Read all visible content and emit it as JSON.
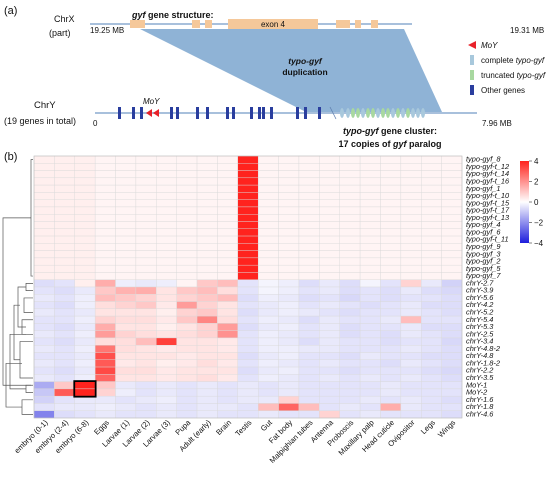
{
  "panel_a": {
    "label": "(a)",
    "chrx_name": "ChrX",
    "chrx_sub": "(part)",
    "chrx_start": "19.25 MB",
    "chrx_end": "19.31 MB",
    "gene_structure_bold": "gyf",
    "gene_structure_rest": " gene structure:",
    "exon_label": "exon 4",
    "duplication_line1": "typo-gyf",
    "duplication_line2": "duplication",
    "chry_name": "ChrY",
    "chry_sub": "(19 genes in total)",
    "chry_start": "0",
    "chry_end": "7.96 MB",
    "moy_label": "MoY",
    "cluster_line1_a": "typo-gyf",
    "cluster_line1_b": " gene cluster:",
    "cluster_line2_a": "17 copies of ",
    "cluster_line2_b": "gyf",
    "cluster_line2_c": " paralog",
    "legend": [
      {
        "text_a": "MoY",
        "text_b": "",
        "color": "#e8222a",
        "shape": "triangle"
      },
      {
        "text_a": "complete ",
        "text_b": "typo-gyf",
        "color": "#a8c8dc",
        "shape": "bar"
      },
      {
        "text_a": "truncated ",
        "text_b": "typo-gyf",
        "color": "#a8d8a0",
        "shape": "bar"
      },
      {
        "text_a": "Other genes",
        "text_b": "",
        "color": "#2a3e9e",
        "shape": "bar"
      }
    ],
    "colors": {
      "backbone": "#a8c0dc",
      "exon": "#f5c89a",
      "duplication": "#8fb3d6",
      "chry": "#e8222a"
    }
  },
  "panel_b": {
    "label": "(b)",
    "colorbar_ticks": [
      "4",
      "2",
      "0",
      "−2",
      "−4"
    ]
  },
  "chart_data": {
    "type": "heatmap",
    "columns": [
      "embryo (0-1)",
      "embryo (2-4)",
      "embryo (6-8)",
      "Eggs",
      "Larvae (1)",
      "Larvae (2)",
      "Larvae (3)",
      "Pupa",
      "Adult (early)",
      "Brain",
      "Testis",
      "Gut",
      "Fat body",
      "Malpighian tubes",
      "Antenna",
      "Proboscis",
      "Maxillary palp",
      "Head cuticle",
      "Ovipositor",
      "Legs",
      "Wings"
    ],
    "rows": [
      "typo-gyf_8",
      "typo-gyf-t_12",
      "typo-gyf-t_14",
      "typo-gyf-t_16",
      "typo-gyf_1",
      "typo-gyf-t_10",
      "typo-gyf-t_15",
      "typo-gyf-t_17",
      "typo-gyf-t_13",
      "typo-gyf_4",
      "typo-gyf_6",
      "typo-gyf-t_11",
      "typo-gyf_9",
      "typo-gyf_3",
      "typo-gyf_2",
      "typo-gyf_5",
      "typo-gyf_7",
      "chrY-2.7",
      "chrY-3.9",
      "chrY-5.6",
      "chrY-4.2",
      "chrY-5.2",
      "chrY-5.4",
      "chrY-5.3",
      "chrY-2.5",
      "chrY-3.4",
      "chrY-4.8-2",
      "chrY-4.8",
      "chrY-1.8-2",
      "chrY-2.2",
      "chrY-3.5",
      "MoY-1",
      "MoY-2",
      "chrY-1.6",
      "chrY-1.8",
      "chrY-4.6"
    ],
    "values": [
      [
        0.3,
        0.3,
        0.3,
        0.2,
        0.2,
        0.2,
        0.2,
        0.2,
        0.2,
        0.2,
        4.5,
        0.2,
        0.2,
        0.2,
        0.2,
        0.2,
        0.2,
        0.2,
        0.2,
        0.2,
        0.2
      ],
      [
        0.3,
        0.3,
        0.3,
        0.2,
        0.2,
        0.2,
        0.2,
        0.2,
        0.2,
        0.2,
        4.5,
        0.2,
        0.2,
        0.2,
        0.2,
        0.2,
        0.2,
        0.2,
        0.2,
        0.2,
        0.2
      ],
      [
        0.3,
        0.3,
        0.3,
        0.2,
        0.2,
        0.2,
        0.2,
        0.2,
        0.2,
        0.2,
        4.5,
        0.2,
        0.2,
        0.2,
        0.2,
        0.2,
        0.2,
        0.2,
        0.2,
        0.2,
        0.2
      ],
      [
        0.3,
        0.3,
        0.3,
        0.2,
        0.2,
        0.2,
        0.2,
        0.2,
        0.2,
        0.2,
        4.5,
        0.2,
        0.2,
        0.2,
        0.2,
        0.2,
        0.2,
        0.2,
        0.2,
        0.2,
        0.2
      ],
      [
        0.3,
        0.3,
        0.3,
        0.2,
        0.2,
        0.2,
        0.2,
        0.2,
        0.2,
        0.2,
        4.5,
        0.2,
        0.2,
        0.2,
        0.2,
        0.2,
        0.2,
        0.2,
        0.2,
        0.2,
        0.2
      ],
      [
        0.3,
        0.3,
        0.3,
        0.2,
        0.2,
        0.2,
        0.2,
        0.2,
        0.2,
        0.2,
        4.5,
        0.2,
        0.2,
        0.2,
        0.2,
        0.2,
        0.2,
        0.2,
        0.2,
        0.2,
        0.2
      ],
      [
        0.3,
        0.3,
        0.3,
        0.2,
        0.2,
        0.2,
        0.2,
        0.2,
        0.2,
        0.2,
        4.5,
        0.2,
        0.2,
        0.2,
        0.2,
        0.2,
        0.2,
        0.2,
        0.2,
        0.2,
        0.2
      ],
      [
        0.3,
        0.3,
        0.3,
        0.2,
        0.2,
        0.2,
        0.2,
        0.2,
        0.2,
        0.2,
        4.5,
        0.2,
        0.2,
        0.2,
        0.2,
        0.2,
        0.2,
        0.2,
        0.2,
        0.2,
        0.2
      ],
      [
        0.3,
        0.3,
        0.3,
        0.2,
        0.2,
        0.2,
        0.2,
        0.2,
        0.2,
        0.2,
        4.5,
        0.2,
        0.2,
        0.2,
        0.2,
        0.2,
        0.2,
        0.2,
        0.2,
        0.2,
        0.2
      ],
      [
        0.3,
        0.3,
        0.3,
        0.2,
        0.2,
        0.2,
        0.2,
        0.2,
        0.2,
        0.2,
        4.5,
        0.2,
        0.2,
        0.2,
        0.2,
        0.2,
        0.2,
        0.2,
        0.2,
        0.2,
        0.2
      ],
      [
        0.3,
        0.3,
        0.3,
        0.2,
        0.2,
        0.2,
        0.2,
        0.2,
        0.2,
        0.2,
        4.5,
        0.2,
        0.2,
        0.2,
        0.2,
        0.2,
        0.2,
        0.2,
        0.2,
        0.2,
        0.2
      ],
      [
        0.3,
        0.3,
        0.3,
        0.2,
        0.2,
        0.2,
        0.2,
        0.2,
        0.2,
        0.2,
        4.5,
        0.2,
        0.2,
        0.2,
        0.2,
        0.2,
        0.2,
        0.2,
        0.2,
        0.2,
        0.2
      ],
      [
        0.3,
        0.3,
        0.3,
        0.2,
        0.2,
        0.2,
        0.2,
        0.2,
        0.2,
        0.2,
        4.5,
        0.2,
        0.2,
        0.2,
        0.2,
        0.2,
        0.2,
        0.2,
        0.2,
        0.2,
        0.2
      ],
      [
        0.3,
        0.3,
        0.3,
        0.2,
        0.2,
        0.2,
        0.2,
        0.2,
        0.2,
        0.2,
        4.5,
        0.2,
        0.2,
        0.2,
        0.2,
        0.2,
        0.2,
        0.2,
        0.2,
        0.2,
        0.2
      ],
      [
        0.3,
        0.3,
        0.3,
        0.2,
        0.2,
        0.2,
        0.2,
        0.2,
        0.2,
        0.2,
        4.5,
        0.2,
        0.2,
        0.2,
        0.2,
        0.2,
        0.2,
        0.2,
        0.2,
        0.2,
        0.2
      ],
      [
        0.3,
        0.3,
        0.3,
        0.2,
        0.2,
        0.2,
        0.2,
        0.2,
        0.2,
        0.2,
        4.5,
        0.2,
        0.2,
        0.2,
        0.2,
        0.2,
        0.2,
        0.2,
        0.2,
        0.2,
        0.2
      ],
      [
        0.3,
        0.3,
        0.3,
        0.2,
        0.2,
        0.2,
        0.2,
        0.2,
        0.2,
        0.2,
        4.5,
        0.2,
        0.2,
        0.2,
        0.2,
        0.2,
        0.2,
        0.2,
        0.2,
        0.2,
        0.2
      ],
      [
        -0.6,
        -0.5,
        0.3,
        1.5,
        -0.3,
        -0.4,
        -0.3,
        0.2,
        1.0,
        1.2,
        -0.5,
        -0.2,
        -0.3,
        -0.6,
        -0.4,
        -0.6,
        -0.2,
        -0.5,
        0.8,
        -0.4,
        -0.8
      ],
      [
        -0.5,
        -0.6,
        -0.4,
        1.0,
        1.4,
        1.5,
        0.5,
        1.0,
        1.2,
        0.6,
        -0.5,
        -0.2,
        -0.3,
        -0.5,
        -0.4,
        -0.6,
        -0.5,
        -0.6,
        -0.4,
        -0.6,
        -0.7
      ],
      [
        -0.4,
        -0.5,
        -0.3,
        1.2,
        1.0,
        0.8,
        0.5,
        0.8,
        1.0,
        1.2,
        -0.6,
        -0.3,
        -0.4,
        -0.6,
        -0.5,
        -0.7,
        -0.5,
        -0.6,
        -0.5,
        -0.5,
        -0.6
      ],
      [
        -0.5,
        -0.6,
        -0.3,
        0.6,
        0.8,
        1.0,
        0.4,
        1.8,
        0.8,
        0.5,
        -0.5,
        -0.4,
        -0.3,
        -0.5,
        -0.4,
        -0.5,
        -0.6,
        -0.5,
        -0.4,
        -0.6,
        -0.6
      ],
      [
        -0.4,
        -0.5,
        -0.4,
        0.5,
        0.5,
        0.5,
        0.3,
        0.8,
        1.0,
        0.5,
        -0.6,
        -0.4,
        -0.3,
        -0.4,
        -0.5,
        -0.6,
        -0.5,
        -0.5,
        -0.4,
        -0.5,
        -0.6
      ],
      [
        -0.5,
        -0.5,
        -0.3,
        0.8,
        0.6,
        0.6,
        0.4,
        1.0,
        2.2,
        0.6,
        -0.5,
        -0.3,
        -0.4,
        -0.6,
        -0.4,
        -0.5,
        -0.5,
        -0.4,
        1.2,
        -0.5,
        -0.5
      ],
      [
        -0.5,
        -0.6,
        -0.4,
        1.5,
        0.5,
        0.5,
        0.3,
        0.5,
        0.8,
        1.8,
        -0.6,
        -0.4,
        -0.3,
        -0.5,
        -0.4,
        -0.6,
        -0.5,
        -0.5,
        -0.4,
        -0.6,
        -0.6
      ],
      [
        -0.4,
        -0.5,
        -0.3,
        1.8,
        0.8,
        0.6,
        0.5,
        0.6,
        0.8,
        2.0,
        -0.5,
        -0.3,
        -0.4,
        -0.5,
        -0.4,
        -0.6,
        -0.5,
        -0.6,
        -0.4,
        -0.5,
        -0.6
      ],
      [
        -0.5,
        -0.6,
        -0.4,
        0.6,
        0.6,
        1.2,
        3.5,
        0.5,
        0.5,
        0.4,
        -0.5,
        -0.3,
        -0.4,
        -0.6,
        -0.4,
        -0.5,
        -0.5,
        -0.6,
        -0.5,
        -0.5,
        -0.7
      ],
      [
        -0.4,
        -0.5,
        -0.3,
        2.5,
        0.6,
        0.5,
        0.4,
        0.5,
        0.5,
        0.4,
        -0.5,
        -0.3,
        -0.3,
        -0.4,
        -0.4,
        -0.5,
        -0.5,
        -0.5,
        -0.4,
        -0.5,
        -0.6
      ],
      [
        -0.5,
        -0.5,
        -0.4,
        3.2,
        0.5,
        0.5,
        0.5,
        0.4,
        0.5,
        0.5,
        -0.6,
        -0.4,
        -0.3,
        -0.5,
        -0.5,
        -0.6,
        -0.4,
        -0.5,
        -0.5,
        -0.6,
        -0.6
      ],
      [
        -0.4,
        -0.5,
        -0.3,
        3.0,
        0.4,
        0.5,
        0.3,
        0.4,
        0.6,
        0.4,
        -0.5,
        -0.3,
        -0.4,
        -0.5,
        -0.4,
        -0.5,
        -0.5,
        -0.6,
        -0.4,
        -0.5,
        -0.6
      ],
      [
        -0.5,
        -0.6,
        -0.4,
        3.3,
        0.6,
        0.6,
        0.4,
        0.5,
        0.5,
        0.5,
        -0.6,
        -0.4,
        -0.3,
        -0.5,
        -0.5,
        -0.6,
        -0.5,
        -0.5,
        -0.5,
        -0.6,
        -0.7
      ],
      [
        -0.4,
        -0.5,
        -0.3,
        2.8,
        0.5,
        0.5,
        0.4,
        0.5,
        0.6,
        0.4,
        -0.5,
        -0.3,
        -0.4,
        -0.5,
        -0.4,
        -0.5,
        -0.4,
        -0.5,
        -0.4,
        -0.5,
        -0.6
      ],
      [
        -1.5,
        1.0,
        4.0,
        1.0,
        -0.4,
        -0.5,
        -0.4,
        -0.5,
        -0.4,
        -0.5,
        -0.4,
        -0.5,
        -0.4,
        -0.5,
        -0.5,
        -0.5,
        -0.5,
        -0.4,
        -0.5,
        -0.5,
        -0.5
      ],
      [
        -1.0,
        3.0,
        4.0,
        0.8,
        -0.3,
        -0.5,
        -0.4,
        -0.5,
        -0.4,
        -0.5,
        -0.4,
        -0.5,
        -0.4,
        -0.5,
        -0.5,
        -0.5,
        -0.5,
        -0.4,
        -0.5,
        -0.5,
        -0.5
      ],
      [
        -0.8,
        -0.5,
        -0.4,
        -0.4,
        -0.5,
        -0.4,
        -0.3,
        -0.5,
        -0.4,
        -0.5,
        -0.4,
        -0.4,
        0.8,
        -0.5,
        -0.5,
        -0.5,
        -0.4,
        -0.5,
        -0.4,
        -0.5,
        -0.6
      ],
      [
        -0.5,
        -0.4,
        -0.4,
        -0.3,
        -0.4,
        -0.5,
        -0.4,
        -0.5,
        -0.4,
        -0.4,
        -0.5,
        1.2,
        2.8,
        1.2,
        -0.5,
        -0.4,
        -0.5,
        1.5,
        -0.4,
        -0.5,
        -0.5
      ],
      [
        -2.2,
        -0.6,
        -0.5,
        -0.4,
        -0.5,
        -0.5,
        -0.4,
        -0.5,
        -0.4,
        -0.5,
        -0.5,
        -0.4,
        -0.5,
        -0.5,
        0.8,
        -0.5,
        -0.4,
        -0.5,
        -0.5,
        -0.5,
        -0.6
      ]
    ],
    "vmin": -4,
    "vmax": 4,
    "highlight_box": {
      "rows": [
        "MoY-1",
        "MoY-2"
      ],
      "columns": [
        "embryo (6-8)"
      ]
    }
  }
}
